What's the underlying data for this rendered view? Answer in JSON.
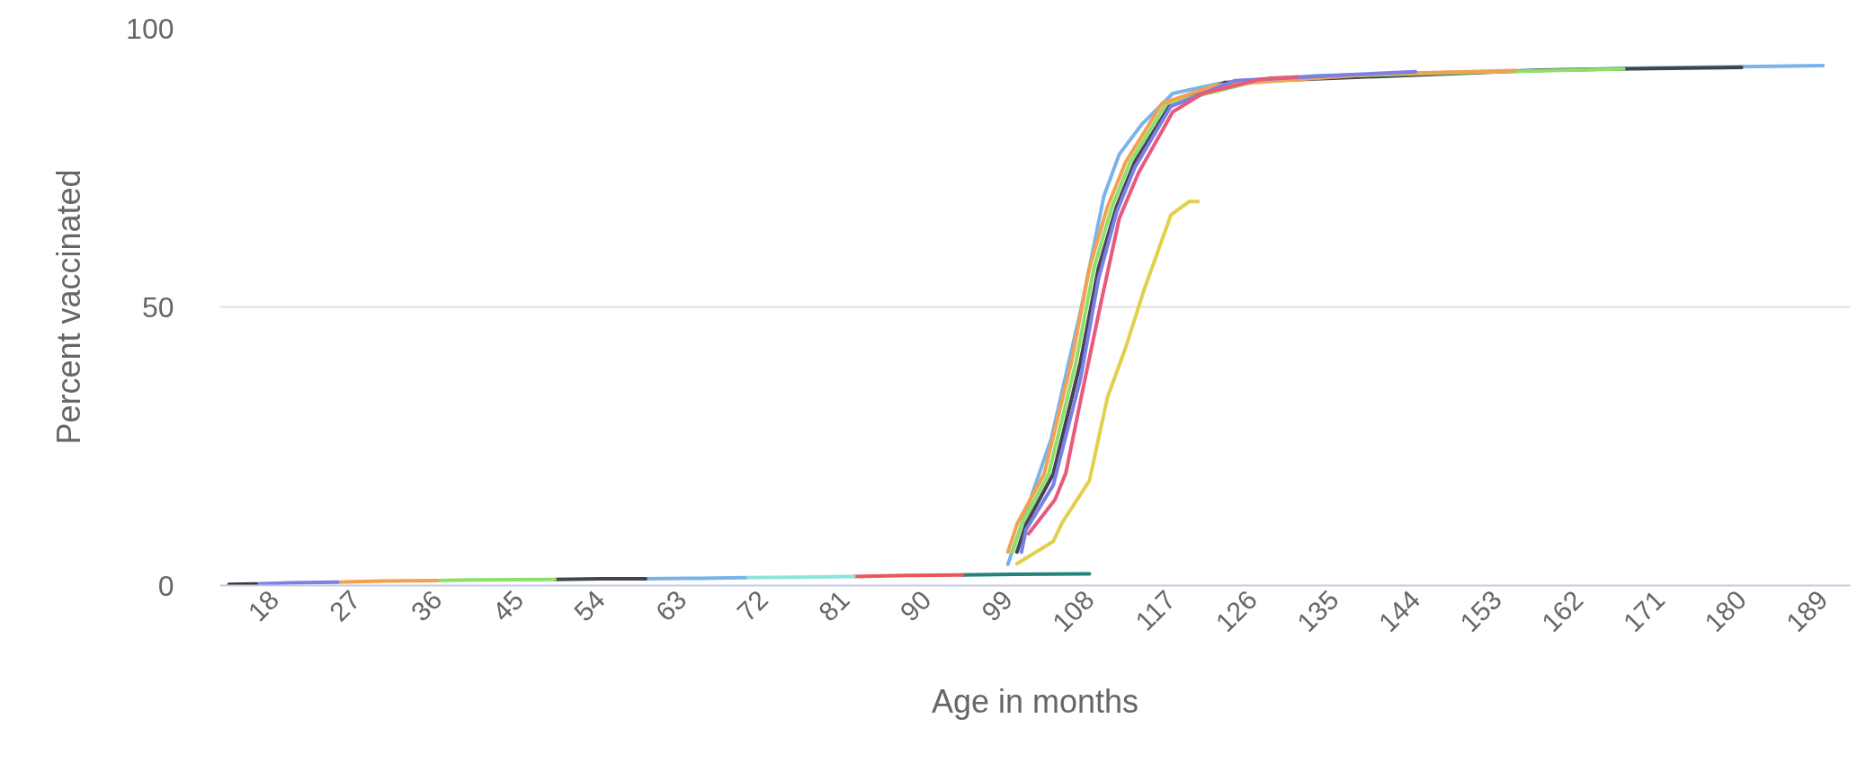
{
  "chart_data": {
    "type": "line",
    "xlabel": "Age in months",
    "ylabel": "Percent vaccinated",
    "xlim": [
      12,
      192
    ],
    "ylim": [
      0,
      100
    ],
    "xticks": [
      18,
      27,
      36,
      45,
      54,
      63,
      72,
      81,
      90,
      99,
      108,
      117,
      126,
      135,
      144,
      153,
      162,
      171,
      180,
      189
    ],
    "yticks": [
      0,
      50,
      100
    ],
    "grid": "y",
    "marker": "none",
    "line_style": "solid",
    "series": [
      {
        "color": "#79b3ea",
        "x": [
          99,
          103.8,
          107.1,
          109.6,
          111.3,
          113.8,
          117.2,
          122.3,
          133,
          170,
          189
        ],
        "values": [
          3.8,
          26.4,
          49.8,
          69.9,
          77.4,
          82.8,
          88.3,
          90.1,
          91.5,
          92.9,
          93.3
        ]
      },
      {
        "color": "#41454f",
        "x": [
          100,
          101,
          104,
          107,
          109,
          111,
          113,
          117,
          123,
          158,
          170,
          180
        ],
        "values": [
          6,
          11,
          20,
          40,
          57,
          68,
          76,
          86.5,
          90.3,
          92.5,
          92.8,
          93.0
        ]
      },
      {
        "color": "#8ee06a",
        "x": [
          99.5,
          100.5,
          103.5,
          106.5,
          108.5,
          110.5,
          112.5,
          116.5,
          128,
          150,
          167
        ],
        "values": [
          6,
          11,
          20,
          40,
          57,
          68,
          76,
          86.5,
          91.1,
          92.1,
          92.7
        ]
      },
      {
        "color": "#f4a14f",
        "x": [
          99,
          100,
          103,
          106,
          108,
          110,
          112,
          116,
          122,
          140,
          155
        ],
        "values": [
          6,
          11,
          20,
          40,
          57,
          68,
          76,
          86.5,
          89.8,
          91.8,
          92.4
        ]
      },
      {
        "color": "#7b7fe8",
        "x": [
          100.5,
          101,
          104,
          107,
          109,
          111,
          113,
          117,
          124,
          137,
          144
        ],
        "values": [
          6,
          10,
          18,
          37,
          55,
          67,
          75,
          86,
          90.6,
          91.7,
          92.2
        ]
      },
      {
        "color": "#e75a7c",
        "x": [
          101.3,
          104.2,
          105.4,
          107.1,
          109.2,
          111.3,
          113.4,
          117.2,
          120.5,
          127,
          131
        ],
        "values": [
          9.3,
          15.4,
          20.2,
          33.8,
          50.2,
          65.9,
          74,
          85,
          88.3,
          90.9,
          91.3
        ]
      },
      {
        "color": "#e2d04b",
        "x": [
          100,
          104,
          105,
          108,
          110,
          112,
          114,
          117,
          119,
          120
        ],
        "values": [
          3.9,
          7.9,
          11.3,
          18.8,
          33.8,
          42.7,
          52.9,
          66.5,
          68.9,
          68.9
        ]
      },
      {
        "color": "#22847c",
        "x": [
          94,
          100,
          108
        ],
        "values": [
          1.9,
          2.0,
          2.1
        ]
      },
      {
        "color": "#e8585a",
        "x": [
          82,
          88,
          94
        ],
        "values": [
          1.6,
          1.8,
          1.9
        ]
      },
      {
        "color": "#8ee4dc",
        "x": [
          70,
          76,
          82
        ],
        "values": [
          1.4,
          1.5,
          1.6
        ]
      },
      {
        "color": "#79b3ea",
        "x": [
          59,
          65,
          70
        ],
        "values": [
          1.2,
          1.3,
          1.4
        ]
      },
      {
        "color": "#41454f",
        "x": [
          49,
          54,
          59
        ],
        "values": [
          1.1,
          1.2,
          1.2
        ]
      },
      {
        "color": "#8ee06a",
        "x": [
          36,
          40,
          49
        ],
        "values": [
          0.9,
          1.0,
          1.1
        ]
      },
      {
        "color": "#f4a14f",
        "x": [
          25,
          30,
          36
        ],
        "values": [
          0.6,
          0.8,
          0.9
        ]
      },
      {
        "color": "#7b7fe8",
        "x": [
          16,
          20,
          25
        ],
        "values": [
          0.3,
          0.5,
          0.6
        ]
      },
      {
        "color": "#3b3b3b",
        "x": [
          13,
          16
        ],
        "values": [
          0.2,
          0.3
        ]
      }
    ]
  }
}
